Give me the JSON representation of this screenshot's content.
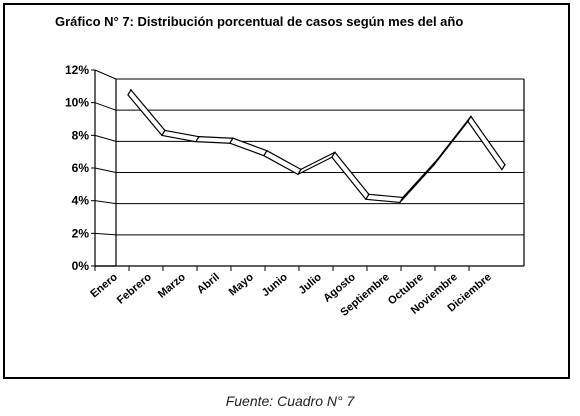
{
  "figure": {
    "title": "Gráfico N° 7: Distribución porcentual de casos según mes del año",
    "caption": "Fuente: Cuadro N° 7"
  },
  "chart_data": {
    "type": "line",
    "title": "Gráfico N° 7: Distribución porcentual de casos según mes del año",
    "categories": [
      "Enero",
      "Febrero",
      "Marzo",
      "Abril",
      "Mayo",
      "Junio",
      "Julio",
      "Agosto",
      "Septiembre",
      "Octubre",
      "Noviembre",
      "Diciembre"
    ],
    "series": [
      {
        "values": [
          11.3,
          8.7,
          8.3,
          8.2,
          7.4,
          6.2,
          7.3,
          4.6,
          4.4,
          6.8,
          9.6,
          6.5
        ]
      }
    ],
    "yticks": [
      "0%",
      "2%",
      "4%",
      "6%",
      "8%",
      "10%",
      "12%"
    ],
    "ylim": [
      0,
      12
    ],
    "grid": true,
    "legend": "none",
    "style": "3d-ribbon",
    "colors": {
      "line": "#000000",
      "ribbon_fill": "#ffffff",
      "grid": "#000000"
    }
  }
}
